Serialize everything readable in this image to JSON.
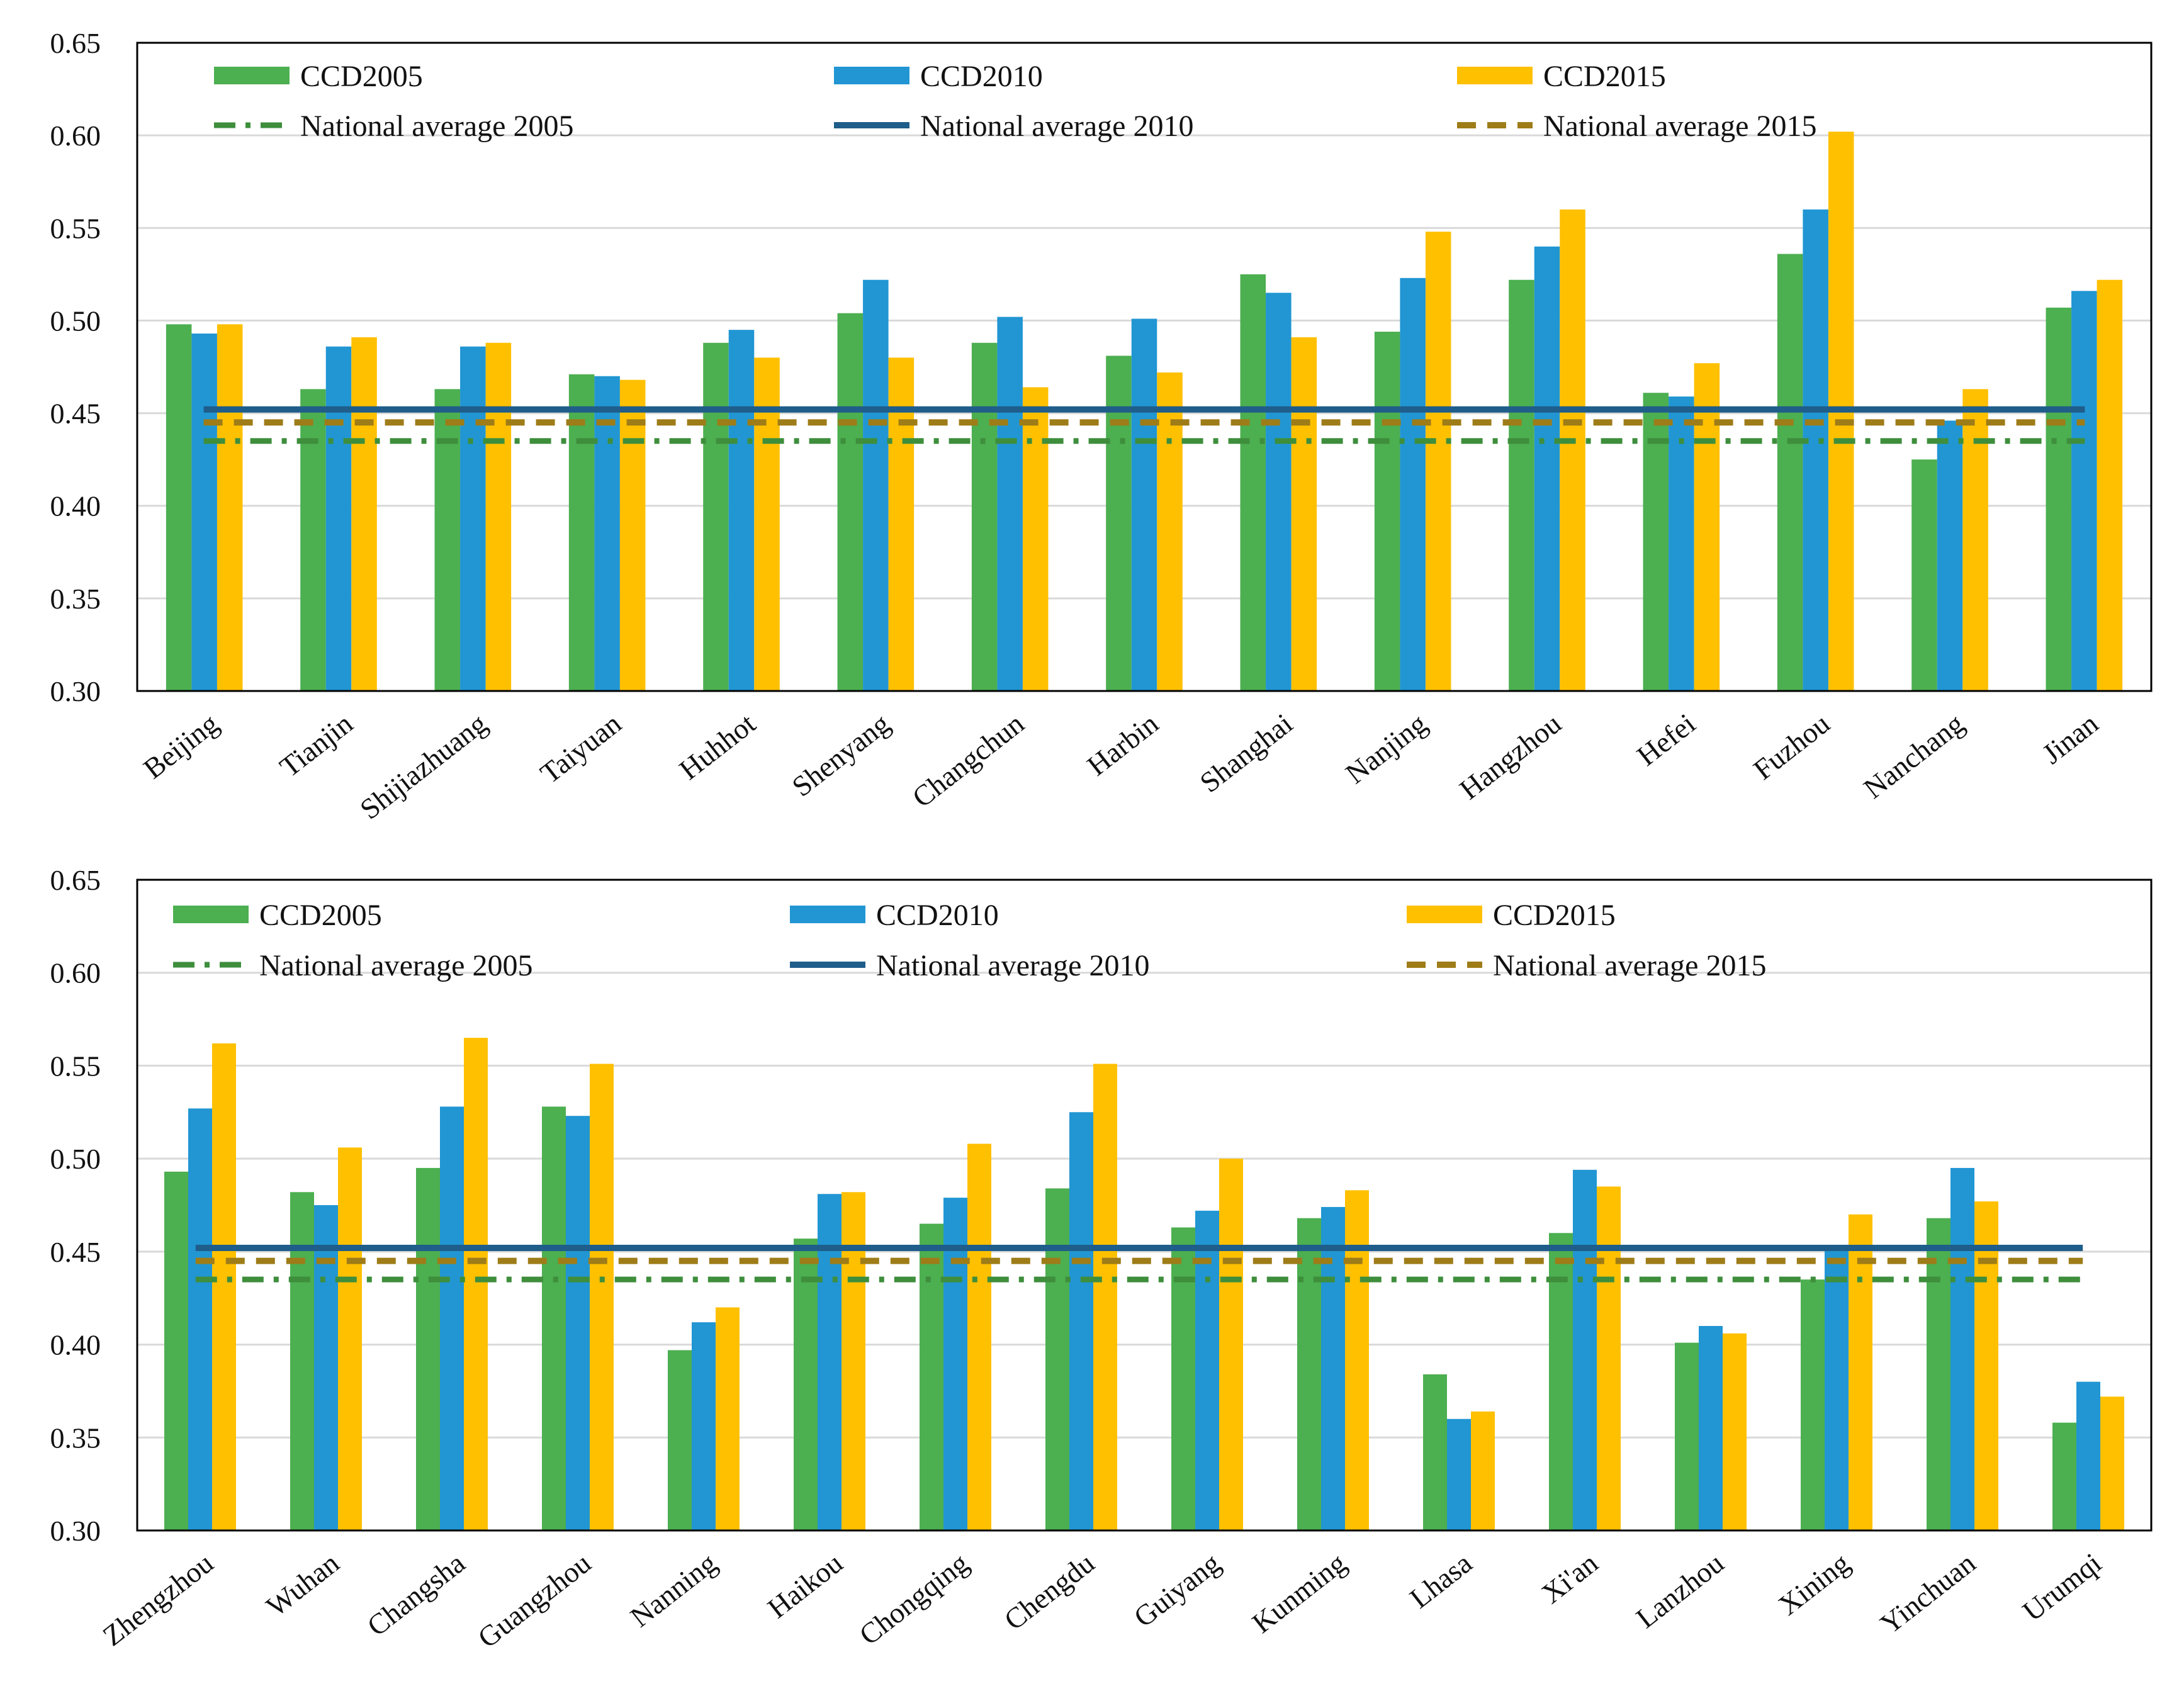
{
  "colors": {
    "ccd2005": "#4CAF50",
    "ccd2010": "#2196D3",
    "ccd2015": "#FFC000",
    "avg2005": "#3E8E3C",
    "avg2010": "#1F5D8A",
    "avg2015": "#9E7C18",
    "grid": "#D9D9D9",
    "frame": "#000000"
  },
  "legend": {
    "ccd2005": "CCD2005",
    "ccd2010": "CCD2010",
    "ccd2015": "CCD2015",
    "avg2005": "National average 2005",
    "avg2010": "National average 2010",
    "avg2015": "National average 2015"
  },
  "chart_data": [
    {
      "type": "bar",
      "title": "",
      "xlabel": "",
      "ylabel": "",
      "ylim": [
        0.3,
        0.65
      ],
      "yticks": [
        "0.30",
        "0.35",
        "0.40",
        "0.45",
        "0.50",
        "0.55",
        "0.60",
        "0.65"
      ],
      "grid": true,
      "legend_position": "top",
      "categories": [
        "Beijing",
        "Tianjin",
        "Shijiazhuang",
        "Taiyuan",
        "Huhhot",
        "Shenyang",
        "Changchun",
        "Harbin",
        "Shanghai",
        "Nanjing",
        "Hangzhou",
        "Hefei",
        "Fuzhou",
        "Nanchang",
        "Jinan"
      ],
      "series": [
        {
          "name": "CCD2005",
          "values": [
            0.498,
            0.463,
            0.463,
            0.471,
            0.488,
            0.504,
            0.488,
            0.481,
            0.525,
            0.494,
            0.522,
            0.461,
            0.536,
            0.425,
            0.507
          ]
        },
        {
          "name": "CCD2010",
          "values": [
            0.493,
            0.486,
            0.486,
            0.47,
            0.495,
            0.522,
            0.502,
            0.501,
            0.515,
            0.523,
            0.54,
            0.459,
            0.56,
            0.446,
            0.516
          ]
        },
        {
          "name": "CCD2015",
          "values": [
            0.498,
            0.491,
            0.488,
            0.468,
            0.48,
            0.48,
            0.464,
            0.472,
            0.491,
            0.548,
            0.56,
            0.477,
            0.602,
            0.463,
            0.522
          ]
        }
      ],
      "reference_lines": [
        {
          "name": "National average 2005",
          "value": 0.435
        },
        {
          "name": "National average 2010",
          "value": 0.452
        },
        {
          "name": "National average 2015",
          "value": 0.445
        }
      ]
    },
    {
      "type": "bar",
      "title": "",
      "xlabel": "",
      "ylabel": "",
      "ylim": [
        0.3,
        0.65
      ],
      "yticks": [
        "0.30",
        "0.35",
        "0.40",
        "0.45",
        "0.50",
        "0.55",
        "0.60",
        "0.65"
      ],
      "grid": true,
      "legend_position": "top",
      "categories": [
        "Zhengzhou",
        "Wuhan",
        "Changsha",
        "Guangzhou",
        "Nanning",
        "Haikou",
        "Chongqing",
        "Chengdu",
        "Guiyang",
        "Kunming",
        "Lhasa",
        "Xi'an",
        "Lanzhou",
        "Xining",
        "Yinchuan",
        "Urumqi"
      ],
      "series": [
        {
          "name": "CCD2005",
          "values": [
            0.493,
            0.482,
            0.495,
            0.528,
            0.397,
            0.457,
            0.465,
            0.484,
            0.463,
            0.468,
            0.384,
            0.46,
            0.401,
            0.435,
            0.468,
            0.358
          ]
        },
        {
          "name": "CCD2010",
          "values": [
            0.527,
            0.475,
            0.528,
            0.523,
            0.412,
            0.481,
            0.479,
            0.525,
            0.472,
            0.474,
            0.36,
            0.494,
            0.41,
            0.452,
            0.495,
            0.38
          ]
        },
        {
          "name": "CCD2015",
          "values": [
            0.562,
            0.506,
            0.565,
            0.551,
            0.42,
            0.482,
            0.508,
            0.551,
            0.5,
            0.483,
            0.364,
            0.485,
            0.406,
            0.47,
            0.477,
            0.372
          ]
        }
      ],
      "reference_lines": [
        {
          "name": "National average 2005",
          "value": 0.435
        },
        {
          "name": "National average 2010",
          "value": 0.452
        },
        {
          "name": "National average 2015",
          "value": 0.445
        }
      ]
    }
  ]
}
